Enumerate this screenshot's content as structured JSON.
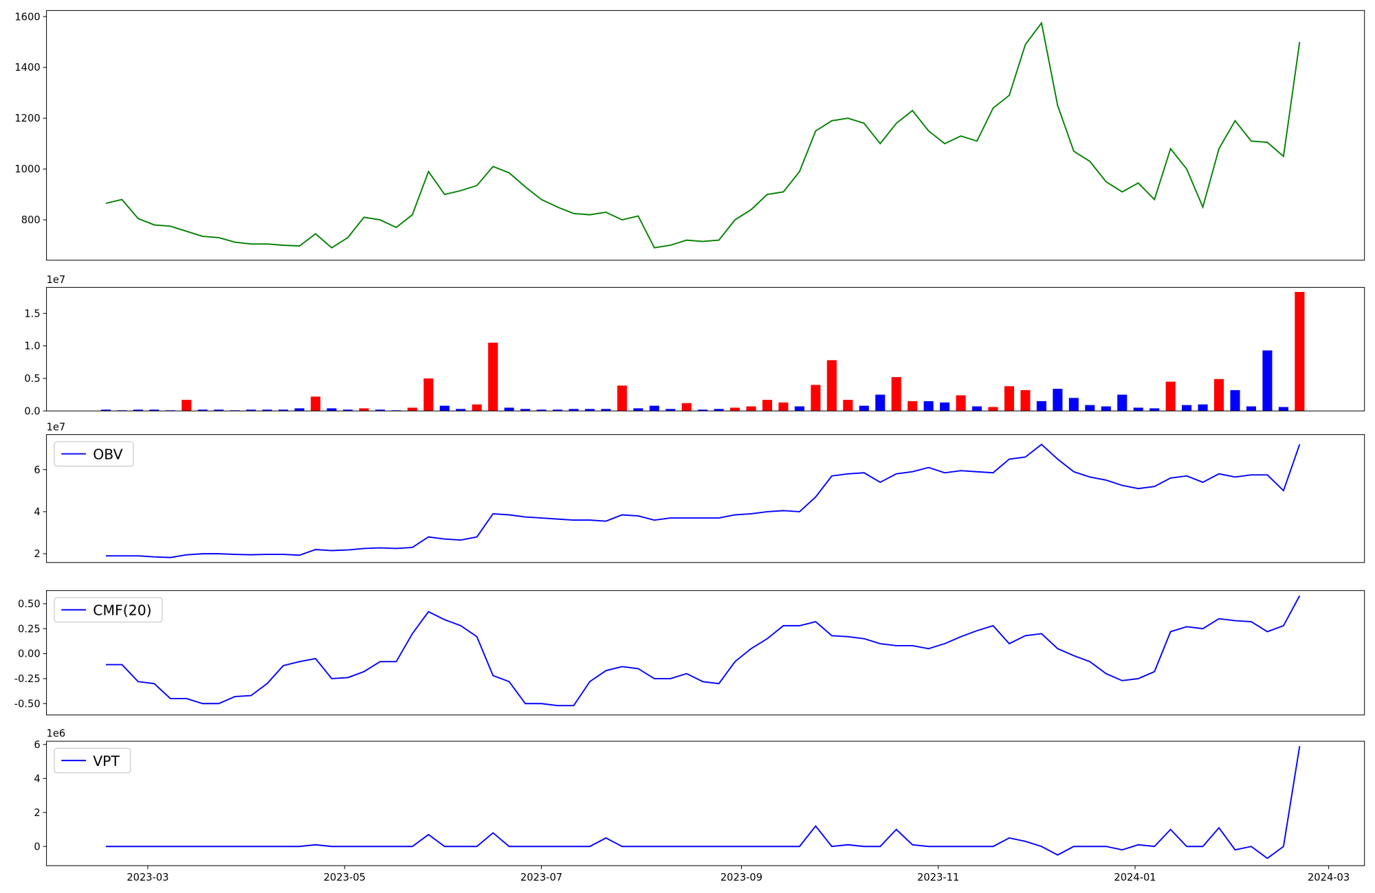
{
  "chart_data": [
    {
      "type": "line",
      "color": "#008000",
      "x": [
        19404,
        19409,
        19414,
        19419,
        19424,
        19429,
        19434,
        19439,
        19444,
        19449,
        19454,
        19459,
        19464,
        19469,
        19474,
        19479,
        19484,
        19489,
        19494,
        19499,
        19504,
        19509,
        19514,
        19519,
        19524,
        19529,
        19534,
        19539,
        19544,
        19549,
        19554,
        19559,
        19564,
        19569,
        19574,
        19579,
        19584,
        19589,
        19594,
        19599,
        19604,
        19609,
        19614,
        19619,
        19624,
        19629,
        19634,
        19639,
        19644,
        19649,
        19654,
        19659,
        19664,
        19669,
        19674,
        19679,
        19684,
        19689,
        19694,
        19699,
        19704,
        19709,
        19714,
        19719,
        19724,
        19729,
        19734,
        19739,
        19744,
        19749,
        19754,
        19759,
        19764,
        19769,
        19774
      ],
      "values": [
        865,
        880,
        805,
        780,
        775,
        755,
        735,
        730,
        712,
        705,
        705,
        700,
        697,
        745,
        690,
        730,
        810,
        800,
        770,
        820,
        990,
        900,
        915,
        935,
        1010,
        985,
        930,
        880,
        850,
        825,
        820,
        830,
        800,
        815,
        690,
        700,
        720,
        715,
        720,
        800,
        840,
        900,
        910,
        990,
        1150,
        1190,
        1200,
        1180,
        1100,
        1180,
        1230,
        1150,
        1100,
        1130,
        1110,
        1240,
        1290,
        1490,
        1575,
        1250,
        1070,
        1030,
        950,
        910,
        945,
        880,
        1080,
        1000,
        850,
        1080,
        1190,
        1110,
        1105,
        1050,
        1500
      ],
      "xlim": [
        19385.6,
        19794.1
      ],
      "ylim": [
        641,
        1624
      ],
      "yticks": [
        800,
        1000,
        1200,
        1400,
        1600
      ]
    },
    {
      "type": "bar",
      "offset_label": "1e7",
      "x": [
        19404,
        19409,
        19414,
        19419,
        19424,
        19429,
        19434,
        19439,
        19444,
        19449,
        19454,
        19459,
        19464,
        19469,
        19474,
        19479,
        19484,
        19489,
        19494,
        19499,
        19504,
        19509,
        19514,
        19519,
        19524,
        19529,
        19534,
        19539,
        19544,
        19549,
        19554,
        19559,
        19564,
        19569,
        19574,
        19579,
        19584,
        19589,
        19594,
        19599,
        19604,
        19609,
        19614,
        19619,
        19624,
        19629,
        19634,
        19639,
        19644,
        19649,
        19654,
        19659,
        19664,
        19669,
        19674,
        19679,
        19684,
        19689,
        19694,
        19699,
        19704,
        19709,
        19714,
        19719,
        19724,
        19729,
        19734,
        19739,
        19744,
        19749,
        19754,
        19759,
        19764,
        19769,
        19774
      ],
      "values": [
        200000,
        100000,
        200000,
        200000,
        100000,
        1700000,
        200000,
        200000,
        100000,
        200000,
        200000,
        200000,
        400000,
        2200000,
        400000,
        200000,
        400000,
        200000,
        100000,
        500000,
        5000000,
        800000,
        300000,
        1000000,
        10500000,
        500000,
        300000,
        200000,
        200000,
        300000,
        300000,
        300000,
        3900000,
        400000,
        800000,
        300000,
        1200000,
        200000,
        300000,
        500000,
        700000,
        1700000,
        1300000,
        700000,
        4000000,
        7800000,
        1700000,
        800000,
        2500000,
        5200000,
        1500000,
        1500000,
        1300000,
        2400000,
        700000,
        600000,
        3800000,
        3200000,
        1500000,
        3400000,
        2000000,
        900000,
        700000,
        2500000,
        500000,
        400000,
        4500000,
        900000,
        1000000,
        4900000,
        3200000,
        700000,
        9300000,
        600000,
        18300000
      ],
      "colors": [
        "blue",
        "blue",
        "blue",
        "blue",
        "blue",
        "red",
        "blue",
        "blue",
        "blue",
        "blue",
        "blue",
        "blue",
        "blue",
        "red",
        "blue",
        "blue",
        "red",
        "blue",
        "blue",
        "red",
        "red",
        "blue",
        "blue",
        "red",
        "red",
        "blue",
        "blue",
        "blue",
        "blue",
        "blue",
        "blue",
        "blue",
        "red",
        "blue",
        "blue",
        "blue",
        "red",
        "blue",
        "blue",
        "red",
        "red",
        "red",
        "red",
        "blue",
        "red",
        "red",
        "red",
        "blue",
        "blue",
        "red",
        "red",
        "blue",
        "blue",
        "red",
        "blue",
        "red",
        "red",
        "red",
        "blue",
        "blue",
        "blue",
        "blue",
        "blue",
        "blue",
        "blue",
        "blue",
        "red",
        "blue",
        "blue",
        "red",
        "blue",
        "blue",
        "blue",
        "blue",
        "red"
      ],
      "xlim": [
        19385.6,
        19794.1
      ],
      "ylim": [
        0,
        19000000
      ],
      "yticks": [
        {
          "value": 0,
          "label": "0.0"
        },
        {
          "value": 5000000,
          "label": "0.5"
        },
        {
          "value": 10000000,
          "label": "1.0"
        },
        {
          "value": 15000000,
          "label": "1.5"
        }
      ]
    },
    {
      "type": "line",
      "offset_label": "1e7",
      "legend": "upper left",
      "x": [
        19404,
        19409,
        19414,
        19419,
        19424,
        19429,
        19434,
        19439,
        19444,
        19449,
        19454,
        19459,
        19464,
        19469,
        19474,
        19479,
        19484,
        19489,
        19494,
        19499,
        19504,
        19509,
        19514,
        19519,
        19524,
        19529,
        19534,
        19539,
        19544,
        19549,
        19554,
        19559,
        19564,
        19569,
        19574,
        19579,
        19584,
        19589,
        19594,
        19599,
        19604,
        19609,
        19614,
        19619,
        19624,
        19629,
        19634,
        19639,
        19644,
        19649,
        19654,
        19659,
        19664,
        19669,
        19674,
        19679,
        19684,
        19689,
        19694,
        19699,
        19704,
        19709,
        19714,
        19719,
        19724,
        19729,
        19734,
        19739,
        19744,
        19749,
        19754,
        19759,
        19764,
        19769,
        19774
      ],
      "series": [
        {
          "name": "OBV",
          "color": "blue",
          "values": [
            19000000,
            19000000,
            19000000,
            18500000,
            18200000,
            19500000,
            20000000,
            20000000,
            19700000,
            19500000,
            19700000,
            19700000,
            19300000,
            22000000,
            21500000,
            21800000,
            22500000,
            22800000,
            22500000,
            23000000,
            28000000,
            27000000,
            26500000,
            28000000,
            39000000,
            38500000,
            37500000,
            37000000,
            36500000,
            36000000,
            36000000,
            35500000,
            38500000,
            38000000,
            36000000,
            37000000,
            37000000,
            37000000,
            37000000,
            38500000,
            39000000,
            40000000,
            40500000,
            40000000,
            47000000,
            57000000,
            58000000,
            58500000,
            54000000,
            58000000,
            59000000,
            61000000,
            58500000,
            59500000,
            59000000,
            58500000,
            65000000,
            66000000,
            72000000,
            65000000,
            59000000,
            56500000,
            55000000,
            52500000,
            51000000,
            52000000,
            56000000,
            57000000,
            54000000,
            58000000,
            56500000,
            57500000,
            57500000,
            50000000,
            72000000
          ]
        }
      ],
      "xlim": [
        19385.6,
        19794.1
      ],
      "ylim": [
        15830000,
        76670000
      ],
      "yticks": [
        {
          "value": 20000000,
          "label": "2"
        },
        {
          "value": 40000000,
          "label": "4"
        },
        {
          "value": 60000000,
          "label": "6"
        }
      ]
    },
    {
      "type": "line",
      "legend": "upper left",
      "x": [
        19404,
        19409,
        19414,
        19419,
        19424,
        19429,
        19434,
        19439,
        19444,
        19449,
        19454,
        19459,
        19464,
        19469,
        19474,
        19479,
        19484,
        19489,
        19494,
        19499,
        19504,
        19509,
        19514,
        19519,
        19524,
        19529,
        19534,
        19539,
        19544,
        19549,
        19554,
        19559,
        19564,
        19569,
        19574,
        19579,
        19584,
        19589,
        19594,
        19599,
        19604,
        19609,
        19614,
        19619,
        19624,
        19629,
        19634,
        19639,
        19644,
        19649,
        19654,
        19659,
        19664,
        19669,
        19674,
        19679,
        19684,
        19689,
        19694,
        19699,
        19704,
        19709,
        19714,
        19719,
        19724,
        19729,
        19734,
        19739,
        19744,
        19749,
        19754,
        19759,
        19764,
        19769,
        19774
      ],
      "series": [
        {
          "name": "CMF(20)",
          "color": "blue",
          "values": [
            -0.11,
            -0.11,
            -0.28,
            -0.3,
            -0.45,
            -0.45,
            -0.5,
            -0.5,
            -0.43,
            -0.42,
            -0.3,
            -0.12,
            -0.08,
            -0.05,
            -0.25,
            -0.24,
            -0.18,
            -0.08,
            -0.08,
            0.2,
            0.42,
            0.34,
            0.28,
            0.17,
            -0.22,
            -0.28,
            -0.5,
            -0.5,
            -0.52,
            -0.52,
            -0.28,
            -0.17,
            -0.13,
            -0.15,
            -0.25,
            -0.25,
            -0.2,
            -0.28,
            -0.3,
            -0.08,
            0.05,
            0.15,
            0.28,
            0.28,
            0.32,
            0.18,
            0.17,
            0.15,
            0.1,
            0.08,
            0.08,
            0.05,
            0.1,
            0.17,
            0.23,
            0.28,
            0.1,
            0.18,
            0.2,
            0.05,
            -0.02,
            -0.08,
            -0.2,
            -0.27,
            -0.25,
            -0.18,
            0.22,
            0.27,
            0.25,
            0.35,
            0.33,
            0.32,
            0.22,
            0.28,
            0.58
          ]
        }
      ],
      "xlim": [
        19385.6,
        19794.1
      ],
      "ylim": [
        -0.614,
        0.632
      ],
      "yticks": [
        {
          "value": -0.5,
          "label": "-0.50"
        },
        {
          "value": -0.25,
          "label": "-0.25"
        },
        {
          "value": 0,
          "label": "0.00"
        },
        {
          "value": 0.25,
          "label": "0.25"
        },
        {
          "value": 0.5,
          "label": "0.50"
        }
      ]
    },
    {
      "type": "line",
      "offset_label": "1e6",
      "legend": "upper left",
      "x": [
        19404,
        19409,
        19414,
        19419,
        19424,
        19429,
        19434,
        19439,
        19444,
        19449,
        19454,
        19459,
        19464,
        19469,
        19474,
        19479,
        19484,
        19489,
        19494,
        19499,
        19504,
        19509,
        19514,
        19519,
        19524,
        19529,
        19534,
        19539,
        19544,
        19549,
        19554,
        19559,
        19564,
        19569,
        19574,
        19579,
        19584,
        19589,
        19594,
        19599,
        19604,
        19609,
        19614,
        19619,
        19624,
        19629,
        19634,
        19639,
        19644,
        19649,
        19654,
        19659,
        19664,
        19669,
        19674,
        19679,
        19684,
        19689,
        19694,
        19699,
        19704,
        19709,
        19714,
        19719,
        19724,
        19729,
        19734,
        19739,
        19744,
        19749,
        19754,
        19759,
        19764,
        19769,
        19774
      ],
      "series": [
        {
          "name": "VPT",
          "color": "blue",
          "values": [
            0,
            0,
            0,
            0,
            0,
            0,
            0,
            0,
            0,
            0,
            0,
            0,
            0,
            100000,
            0,
            0,
            0,
            0,
            0,
            0,
            700000,
            0,
            0,
            0,
            800000,
            0,
            0,
            0,
            0,
            0,
            0,
            500000,
            0,
            0,
            0,
            0,
            0,
            0,
            0,
            0,
            0,
            0,
            0,
            0,
            1200000,
            0,
            100000,
            0,
            0,
            1000000,
            100000,
            0,
            0,
            0,
            0,
            0,
            500000,
            300000,
            0,
            -500000,
            0,
            0,
            0,
            -200000,
            100000,
            0,
            1000000,
            0,
            0,
            1100000,
            -200000,
            0,
            -700000,
            0,
            5900000
          ]
        }
      ],
      "xlim": [
        19385.6,
        19794.1
      ],
      "ylim": [
        -1130000,
        6190000
      ],
      "yticks": [
        {
          "value": 0,
          "label": "0"
        },
        {
          "value": 2000000,
          "label": "2"
        },
        {
          "value": 4000000,
          "label": "4"
        },
        {
          "value": 6000000,
          "label": "6"
        }
      ],
      "xticks": [
        {
          "value": 19417,
          "label": "2023-03"
        },
        {
          "value": 19478,
          "label": "2023-05"
        },
        {
          "value": 19539,
          "label": "2023-07"
        },
        {
          "value": 19601,
          "label": "2023-09"
        },
        {
          "value": 19662,
          "label": "2023-11"
        },
        {
          "value": 19723,
          "label": "2024-01"
        },
        {
          "value": 19783,
          "label": "2024-03"
        }
      ]
    }
  ]
}
